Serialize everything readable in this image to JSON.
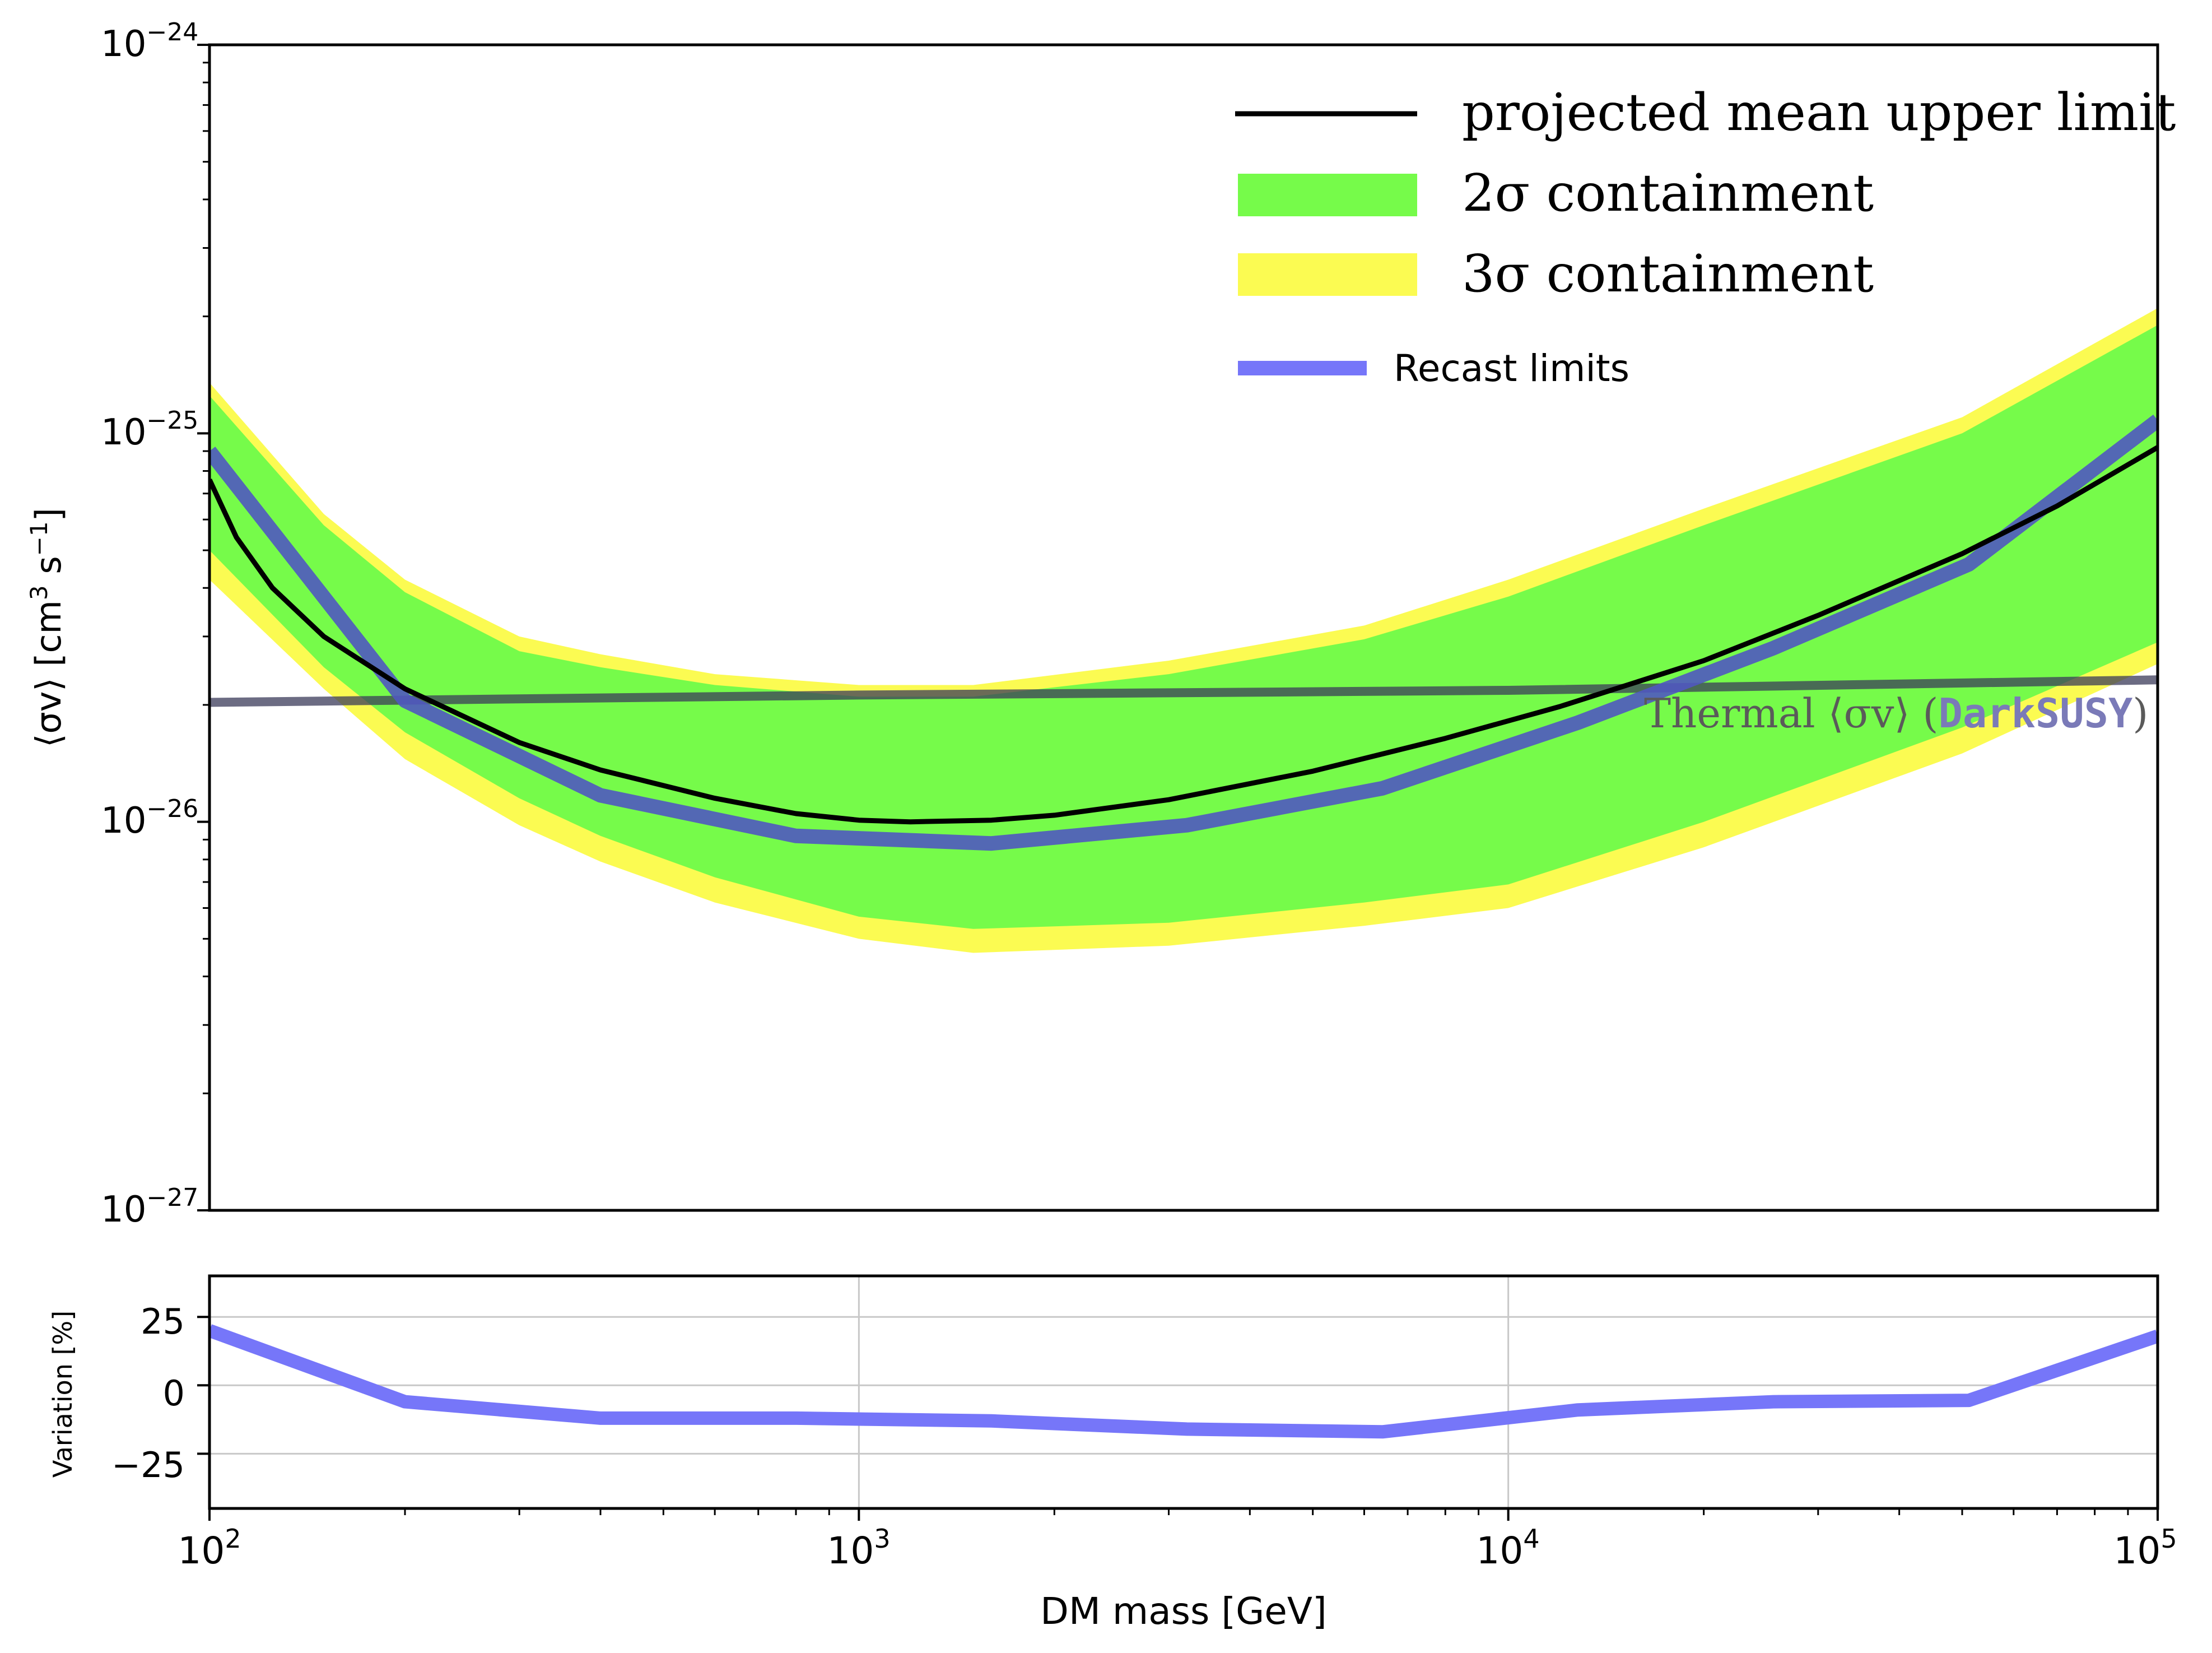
{
  "chart_data": [
    {
      "type": "line",
      "xscale": "log",
      "yscale": "log",
      "xlim": [
        100,
        100000
      ],
      "ylim": [
        1e-27,
        1e-24
      ],
      "xlabel": "",
      "ylabel_parts": [
        "⟨σv⟩ [cm",
        "3",
        " s",
        "−1",
        "]"
      ],
      "x_tick_labels": [],
      "y_ticks": [
        {
          "base": "10",
          "exp": "−24",
          "value": 1e-24
        },
        {
          "base": "10",
          "exp": "−25",
          "value": 1e-25
        },
        {
          "base": "10",
          "exp": "−26",
          "value": 1e-26
        },
        {
          "base": "10",
          "exp": "−27",
          "value": 1e-27
        }
      ],
      "legend_position": "top-right",
      "legend": [
        {
          "key": "mean",
          "label": "projected mean upper limit",
          "color": "#000000",
          "kind": "line"
        },
        {
          "key": "band2",
          "label": "2σ containment",
          "color": "#76fb4a",
          "kind": "patch"
        },
        {
          "key": "band3",
          "label": "3σ containment",
          "color": "#fbfb52",
          "kind": "patch"
        },
        {
          "key": "recast",
          "label": "Recast limits",
          "color": "#7676f9",
          "kind": "line"
        }
      ],
      "annotation": {
        "prefix": "Thermal ⟨σv⟩ (",
        "code": "DarkSUSY",
        "suffix": ")"
      },
      "colors": {
        "mean": "#000000",
        "band2": "#76fb4a",
        "band3": "#fbfb52",
        "recast": "#5058c0",
        "thermal": "#3b3b5a",
        "annotation": "#5a5a5a",
        "annotation_code": "#7a7ab8"
      },
      "series": [
        {
          "key": "mean",
          "name": "projected mean upper limit",
          "x": [
            100,
            110,
            125,
            150,
            200,
            300,
            400,
            600,
            800,
            1000,
            1200,
            1600,
            2000,
            3000,
            5000,
            8000,
            12000,
            20000,
            30000,
            50000,
            70000,
            100000
          ],
          "y": [
            7.6e-26,
            5.4e-26,
            4e-26,
            3e-26,
            2.2e-26,
            1.6e-26,
            1.36e-26,
            1.15e-26,
            1.05e-26,
            1.01e-26,
            1e-26,
            1.01e-26,
            1.04e-26,
            1.14e-26,
            1.35e-26,
            1.64e-26,
            1.98e-26,
            2.6e-26,
            3.4e-26,
            4.9e-26,
            6.5e-26,
            9.2e-26
          ]
        },
        {
          "key": "recast",
          "name": "Recast limits",
          "x": [
            100,
            200,
            400,
            800,
            1600,
            3200,
            6400,
            12800,
            25600,
            51200,
            100000
          ],
          "y": [
            9e-26,
            2.05e-26,
            1.17e-26,
            9.2e-27,
            8.8e-27,
            9.8e-27,
            1.22e-26,
            1.8e-26,
            2.8e-26,
            4.6e-26,
            1.08e-25
          ]
        },
        {
          "key": "thermal",
          "name": "Thermal ⟨σv⟩ (DarkSUSY)",
          "x": [
            100,
            1000,
            10000,
            100000
          ],
          "y": [
            2.03e-26,
            2.12e-26,
            2.18e-26,
            2.32e-26
          ]
        }
      ],
      "bands": [
        {
          "key": "band3",
          "name": "3σ containment",
          "x": [
            100,
            150,
            200,
            300,
            400,
            600,
            1000,
            1500,
            3000,
            6000,
            10000,
            20000,
            50000,
            100000
          ],
          "upper": [
            1.35e-25,
            6.2e-26,
            4.2e-26,
            3e-26,
            2.7e-26,
            2.4e-26,
            2.25e-26,
            2.25e-26,
            2.6e-26,
            3.2e-26,
            4.2e-26,
            6.4e-26,
            1.1e-25,
            2.1e-25
          ],
          "lower": [
            4.2e-26,
            2.2e-26,
            1.45e-26,
            9.8e-27,
            7.9e-27,
            6.2e-27,
            5e-27,
            4.6e-27,
            4.8e-27,
            5.4e-27,
            6e-27,
            8.6e-27,
            1.5e-26,
            2.55e-26
          ]
        },
        {
          "key": "band2",
          "name": "2σ containment",
          "x": [
            100,
            150,
            200,
            300,
            400,
            600,
            1000,
            1500,
            3000,
            6000,
            10000,
            20000,
            50000,
            100000
          ],
          "upper": [
            1.25e-25,
            5.8e-26,
            3.9e-26,
            2.75e-26,
            2.5e-26,
            2.25e-26,
            2.1e-26,
            2.1e-26,
            2.4e-26,
            2.95e-26,
            3.8e-26,
            5.8e-26,
            1e-25,
            1.9e-25
          ],
          "lower": [
            5e-26,
            2.5e-26,
            1.7e-26,
            1.15e-26,
            9.2e-27,
            7.2e-27,
            5.7e-27,
            5.3e-27,
            5.5e-27,
            6.2e-27,
            6.9e-27,
            1e-26,
            1.75e-26,
            2.9e-26
          ]
        }
      ]
    },
    {
      "type": "line",
      "xscale": "log",
      "xlim": [
        100,
        100000
      ],
      "ylim": [
        -45,
        40
      ],
      "xlabel": "DM mass [GeV]",
      "ylabel": "Variation [%]",
      "y_ticks": [
        "25",
        "0",
        "−25"
      ],
      "y_tick_values": [
        25,
        0,
        -25
      ],
      "x_ticks": [
        {
          "base": "10",
          "exp": "2",
          "value": 100
        },
        {
          "base": "10",
          "exp": "3",
          "value": 1000
        },
        {
          "base": "10",
          "exp": "4",
          "value": 10000
        },
        {
          "base": "10",
          "exp": "5",
          "value": 100000
        }
      ],
      "grid": true,
      "colors": {
        "series": "#7676f9",
        "grid": "#c8c8c8"
      },
      "series": [
        {
          "key": "variation",
          "x": [
            100,
            200,
            400,
            800,
            1600,
            3200,
            6400,
            12800,
            25600,
            51200,
            100000
          ],
          "y": [
            20,
            -6,
            -12,
            -12,
            -13,
            -16,
            -17,
            -9,
            -6,
            -5.5,
            18
          ]
        }
      ]
    }
  ]
}
